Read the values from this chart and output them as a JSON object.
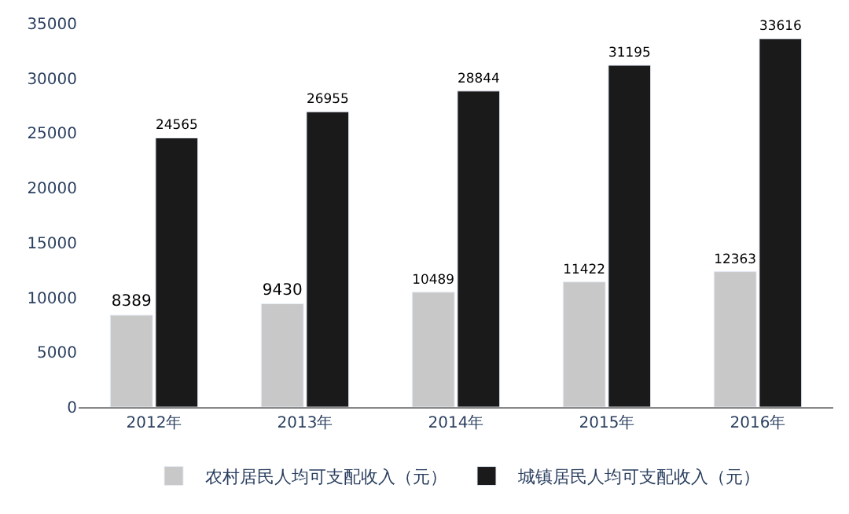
{
  "chart_data": {
    "type": "bar",
    "categories": [
      "2012年",
      "2013年",
      "2014年",
      "2015年",
      "2016年"
    ],
    "series": [
      {
        "name": "农村居民人均可支配收入（元）",
        "color": "#c8c8c8",
        "values": [
          8389,
          9430,
          10489,
          11422,
          12363
        ]
      },
      {
        "name": "城镇居民人均可支配收入（元）",
        "color": "#1a1a1a",
        "values": [
          24565,
          26955,
          28844,
          31195,
          33616
        ]
      }
    ],
    "ylim": [
      0,
      35000
    ],
    "yticks": [
      0,
      5000,
      10000,
      15000,
      20000,
      25000,
      30000,
      35000
    ],
    "grid": false,
    "legend": "bottom",
    "data_labels": true
  }
}
